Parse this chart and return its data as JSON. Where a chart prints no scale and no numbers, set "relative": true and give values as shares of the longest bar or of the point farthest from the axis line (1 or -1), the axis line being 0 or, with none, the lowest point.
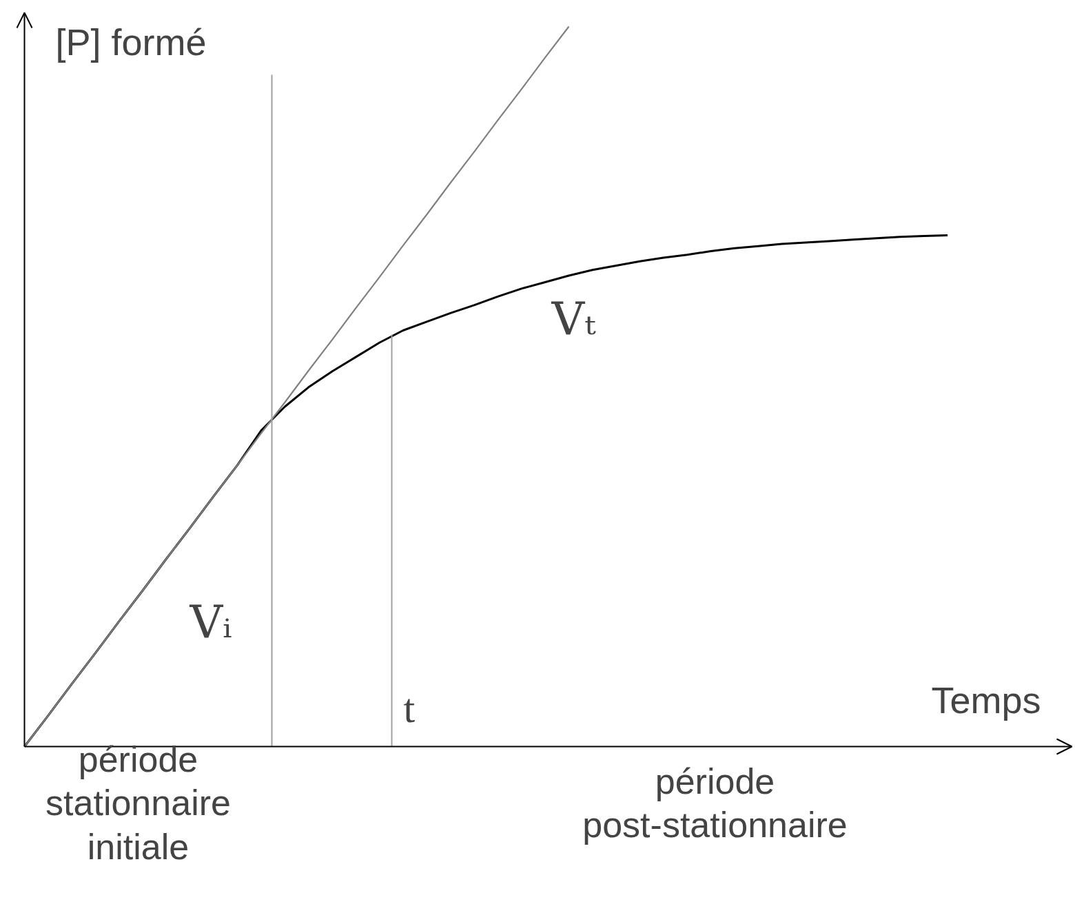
{
  "chart_data": {
    "type": "line",
    "relative": true,
    "xlabel": "Temps",
    "ylabel": "[P] formé",
    "categories": [
      null,
      null,
      null,
      null,
      null,
      null,
      null,
      null,
      null,
      null,
      null,
      null,
      null,
      null,
      null,
      null,
      null,
      null,
      null,
      null,
      null,
      null,
      null,
      null,
      null,
      null,
      null,
      null,
      null,
      null,
      null,
      null,
      null,
      null,
      null,
      null,
      null,
      null,
      null,
      null
    ],
    "series": [
      {
        "color": "#000000",
        "values": [
          0,
          0.043,
          0.087,
          0.13,
          0.174,
          0.217,
          0.261,
          0.304,
          0.348,
          0.391,
          0.439,
          0.472,
          0.499,
          0.521,
          0.541,
          0.561,
          0.578,
          0.59,
          0.602,
          0.613,
          0.625,
          0.636,
          0.645,
          0.654,
          0.662,
          0.668,
          0.674,
          0.679,
          0.683,
          0.688,
          0.692,
          0.695,
          0.698,
          0.7,
          0.702,
          0.704,
          0.706,
          0.708,
          0.709,
          0.71
        ]
      },
      {
        "color": "#808080",
        "values": [
          0,
          0.043,
          0.087,
          0.13,
          0.174,
          0.217,
          0.261,
          0.304,
          0.348,
          0.391,
          0.435,
          0.478,
          0.522,
          0.565,
          0.609,
          0.652,
          0.696,
          0.739,
          0.783,
          0.826,
          0.87,
          0.913,
          0.957,
          1,
          null,
          null,
          null,
          null,
          null,
          null,
          null,
          null,
          null,
          null,
          null,
          null,
          null,
          null,
          null,
          null
        ]
      }
    ],
    "annotations": [
      "Vᵢ",
      "Vₜ",
      "t",
      "période\nstationnaire\ninitiale",
      "période\npost-stationnaire"
    ],
    "grid": false
  }
}
